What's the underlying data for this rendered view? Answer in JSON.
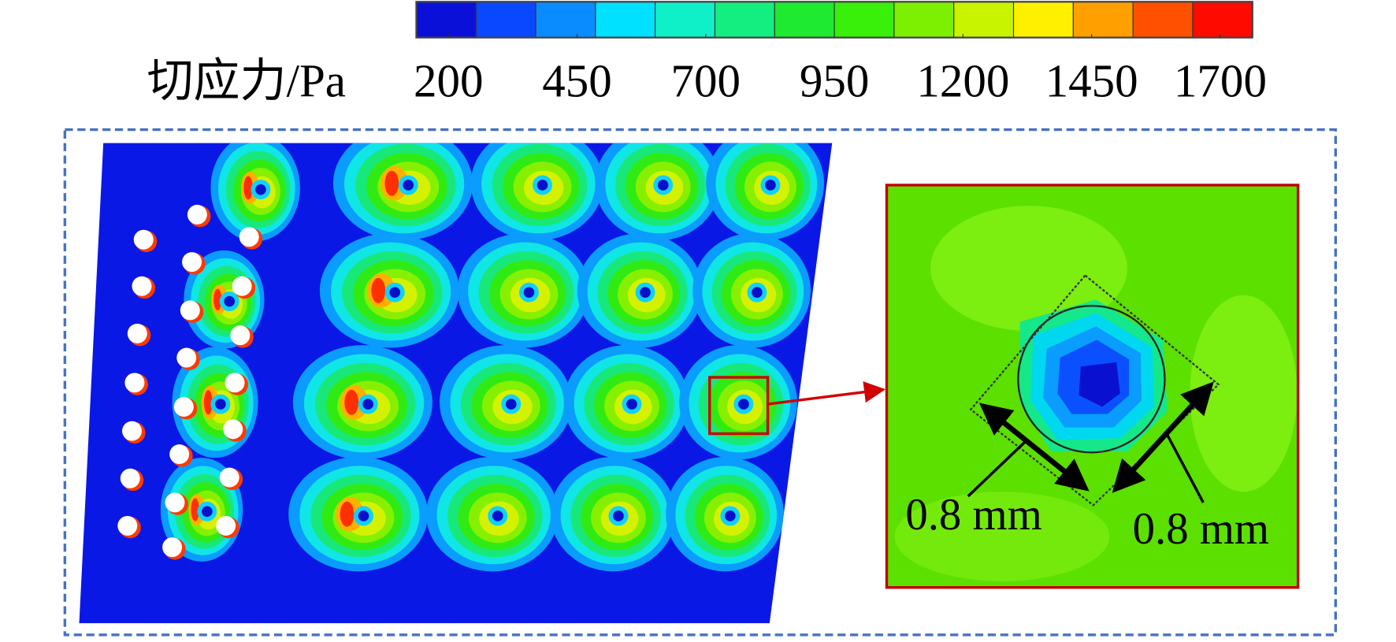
{
  "colorbar": {
    "label": "切应力/Pa",
    "colors": [
      "#0a10d8",
      "#0a48ff",
      "#0a8cff",
      "#00e0ff",
      "#10f0c8",
      "#14ee80",
      "#1eea30",
      "#38f00a",
      "#7cf000",
      "#c8f400",
      "#fff000",
      "#ffa000",
      "#ff5000",
      "#ff0a00"
    ],
    "range": [
      137.5,
      1762.5
    ],
    "ticks": [
      200,
      450,
      700,
      950,
      1200,
      1450,
      1700
    ]
  },
  "annotations": [
    "0.8 mm",
    "0.8 mm"
  ]
}
